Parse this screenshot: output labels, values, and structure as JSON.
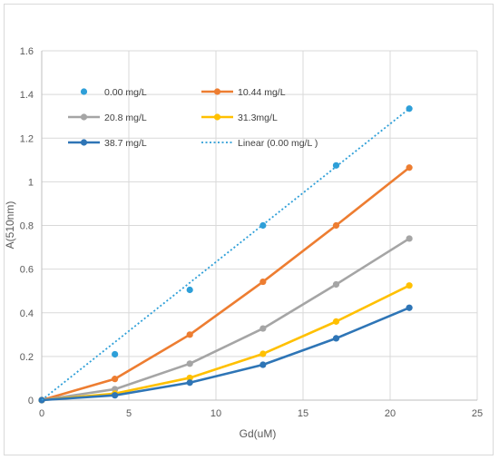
{
  "chart_data": {
    "type": "line",
    "title": "",
    "xlabel": "Gd(uM)",
    "ylabel": "A(510nm)",
    "xlim": [
      0,
      25
    ],
    "ylim": [
      0,
      1.6
    ],
    "xticks": [
      0,
      5,
      10,
      15,
      20,
      25
    ],
    "yticks": [
      0,
      0.2,
      0.4,
      0.6,
      0.8,
      1,
      1.2,
      1.4,
      1.6
    ],
    "grid": true,
    "legend_position": "inside-top-left",
    "x": [
      0,
      4.2,
      8.5,
      12.7,
      16.9,
      21.1
    ],
    "series": [
      {
        "name": "0.00 mg/L",
        "style": "markers",
        "color": "#2e9fd8",
        "values": [
          0,
          0.21,
          0.505,
          0.8,
          1.075,
          1.335
        ]
      },
      {
        "name": "10.44 mg/L",
        "style": "line-markers",
        "color": "#ed7d31",
        "values": [
          0,
          0.097,
          0.3,
          0.542,
          0.8,
          1.065
        ]
      },
      {
        "name": "20.8 mg/L",
        "style": "line-markers",
        "color": "#a5a5a5",
        "values": [
          0,
          0.05,
          0.167,
          0.328,
          0.53,
          0.74
        ]
      },
      {
        "name": "31.3mg/L",
        "style": "line-markers",
        "color": "#ffc000",
        "values": [
          0,
          0.03,
          0.102,
          0.212,
          0.36,
          0.525
        ]
      },
      {
        "name": "38.7 mg/L",
        "style": "line-markers",
        "color": "#2e75b6",
        "values": [
          0,
          0.022,
          0.08,
          0.162,
          0.283,
          0.423
        ]
      },
      {
        "name": "Linear (0.00 mg/L )",
        "style": "dotted-trendline",
        "color": "#2e9fd8",
        "x": [
          0,
          21.1
        ],
        "values": [
          0,
          1.335
        ]
      }
    ]
  }
}
